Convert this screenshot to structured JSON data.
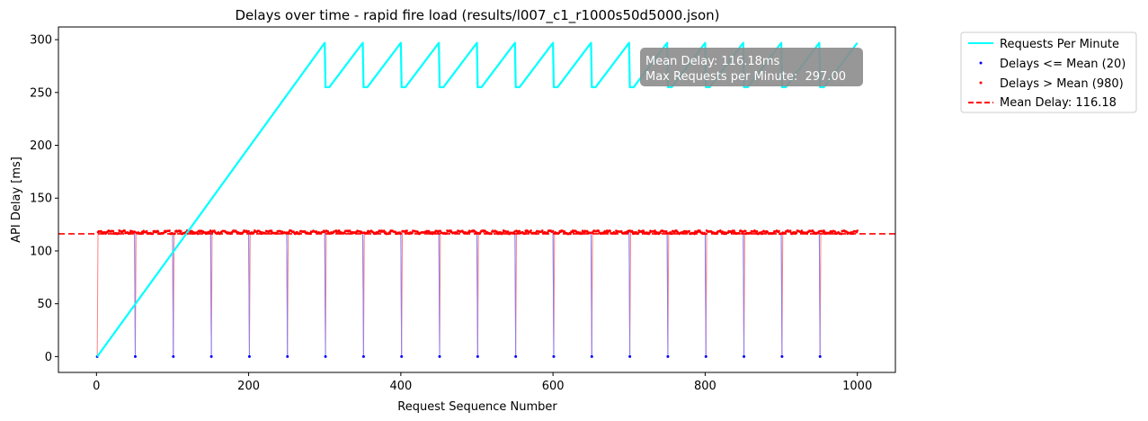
{
  "chart_data": {
    "type": "line",
    "title": "Delays over time - rapid fire load (results/l007_c1_r1000s50d5000.json)",
    "xlabel": "Request Sequence Number",
    "ylabel": "API Delay [ms]",
    "xlim": [
      -50,
      1050
    ],
    "ylim": [
      -15,
      312
    ],
    "xticks": [
      0,
      200,
      400,
      600,
      800,
      1000
    ],
    "yticks": [
      0,
      50,
      100,
      150,
      200,
      250,
      300
    ],
    "grid": false,
    "legend_position": "outside-top-right",
    "mean_delay": 116.18,
    "max_requests_per_minute": 297.0,
    "annotation_lines": [
      "Mean Delay: 116.18ms",
      "Max Requests per Minute:  297.00"
    ],
    "low_delay_indices": [
      1,
      51,
      101,
      151,
      201,
      251,
      301,
      351,
      401,
      451,
      501,
      551,
      601,
      651,
      701,
      751,
      801,
      851,
      901,
      951
    ],
    "low_delay_value": 0,
    "high_delay_value": 118.5,
    "requests_per_minute": {
      "start_ramp": [
        [
          1,
          0
        ],
        [
          300,
          297
        ]
      ],
      "sawtooth_period": 50,
      "sawtooth_min": 255,
      "sawtooth_max": 297,
      "x_end": 1000
    },
    "series": [
      {
        "name": "Requests Per Minute",
        "color": "#00ffff",
        "style": "line"
      },
      {
        "name": "Delays <= Mean (20)",
        "color": "#0000ff",
        "style": "points"
      },
      {
        "name": "Delays > Mean (980)",
        "color": "#ff0000",
        "style": "points"
      },
      {
        "name": "Mean Delay: 116.18",
        "color": "#ff0000",
        "style": "dashed"
      }
    ]
  }
}
